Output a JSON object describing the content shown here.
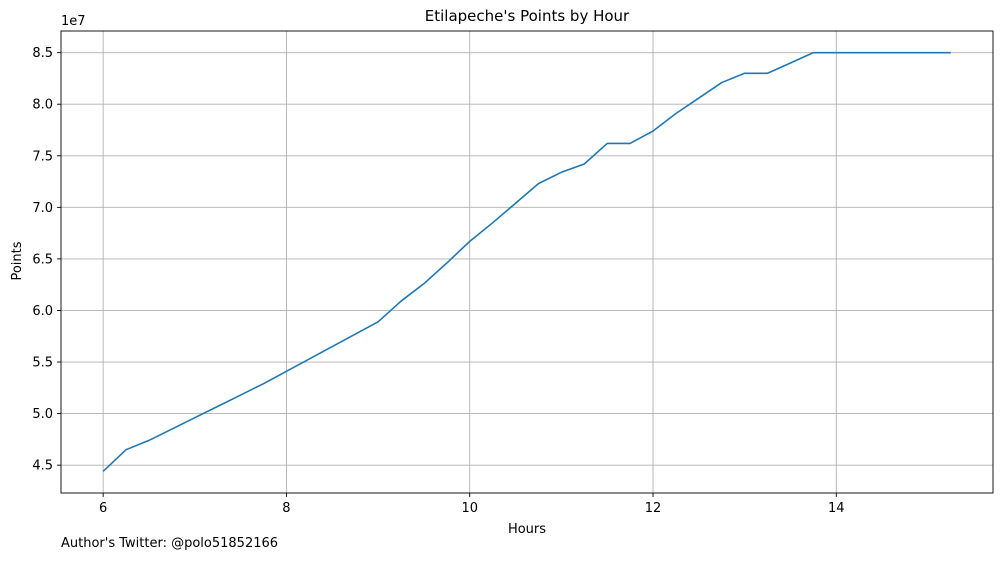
{
  "chart_data": {
    "type": "line",
    "title": "Etilapeche's Points by Hour",
    "xlabel": "Hours",
    "ylabel": "Points",
    "y_offset_label": "1e7",
    "grid": true,
    "xlim": [
      5.54,
      15.71
    ],
    "ylim": [
      42300000,
      87100000
    ],
    "x_ticks": [
      6,
      8,
      10,
      12,
      14
    ],
    "x_tick_labels": [
      "6",
      "8",
      "10",
      "12",
      "14"
    ],
    "y_ticks": [
      45000000,
      50000000,
      55000000,
      60000000,
      65000000,
      70000000,
      75000000,
      80000000,
      85000000
    ],
    "y_tick_labels": [
      "4.5",
      "5.0",
      "5.5",
      "6.0",
      "6.5",
      "7.0",
      "7.5",
      "8.0",
      "8.5"
    ],
    "line_color": "#1f77b4",
    "grid_color": "#b0b0b0",
    "series": [
      {
        "x": [
          6.0,
          6.25,
          6.5,
          6.75,
          7.0,
          7.25,
          7.5,
          7.75,
          8.0,
          8.25,
          8.5,
          8.75,
          9.0,
          9.25,
          9.5,
          9.75,
          10.0,
          10.25,
          10.5,
          10.75,
          11.0,
          11.25,
          11.5,
          11.75,
          12.0,
          12.25,
          12.5,
          12.75,
          13.0,
          13.25,
          13.5,
          13.75,
          14.0,
          14.25,
          14.5,
          14.75,
          15.0,
          15.25
        ],
        "y": [
          44400000,
          46500000,
          47400000,
          48500000,
          49600000,
          50700000,
          51800000,
          52900000,
          54100000,
          55300000,
          56500000,
          57700000,
          58900000,
          60900000,
          62600000,
          64600000,
          66700000,
          68500000,
          70400000,
          72300000,
          73400000,
          74200000,
          76200000,
          76200000,
          77400000,
          79100000,
          80600000,
          82100000,
          83000000,
          83000000,
          84000000,
          85000000,
          85000000,
          85000000,
          85000000,
          85000000,
          85000000,
          85000000
        ]
      }
    ]
  },
  "footer": {
    "text": "Author's Twitter: @polo51852166"
  }
}
